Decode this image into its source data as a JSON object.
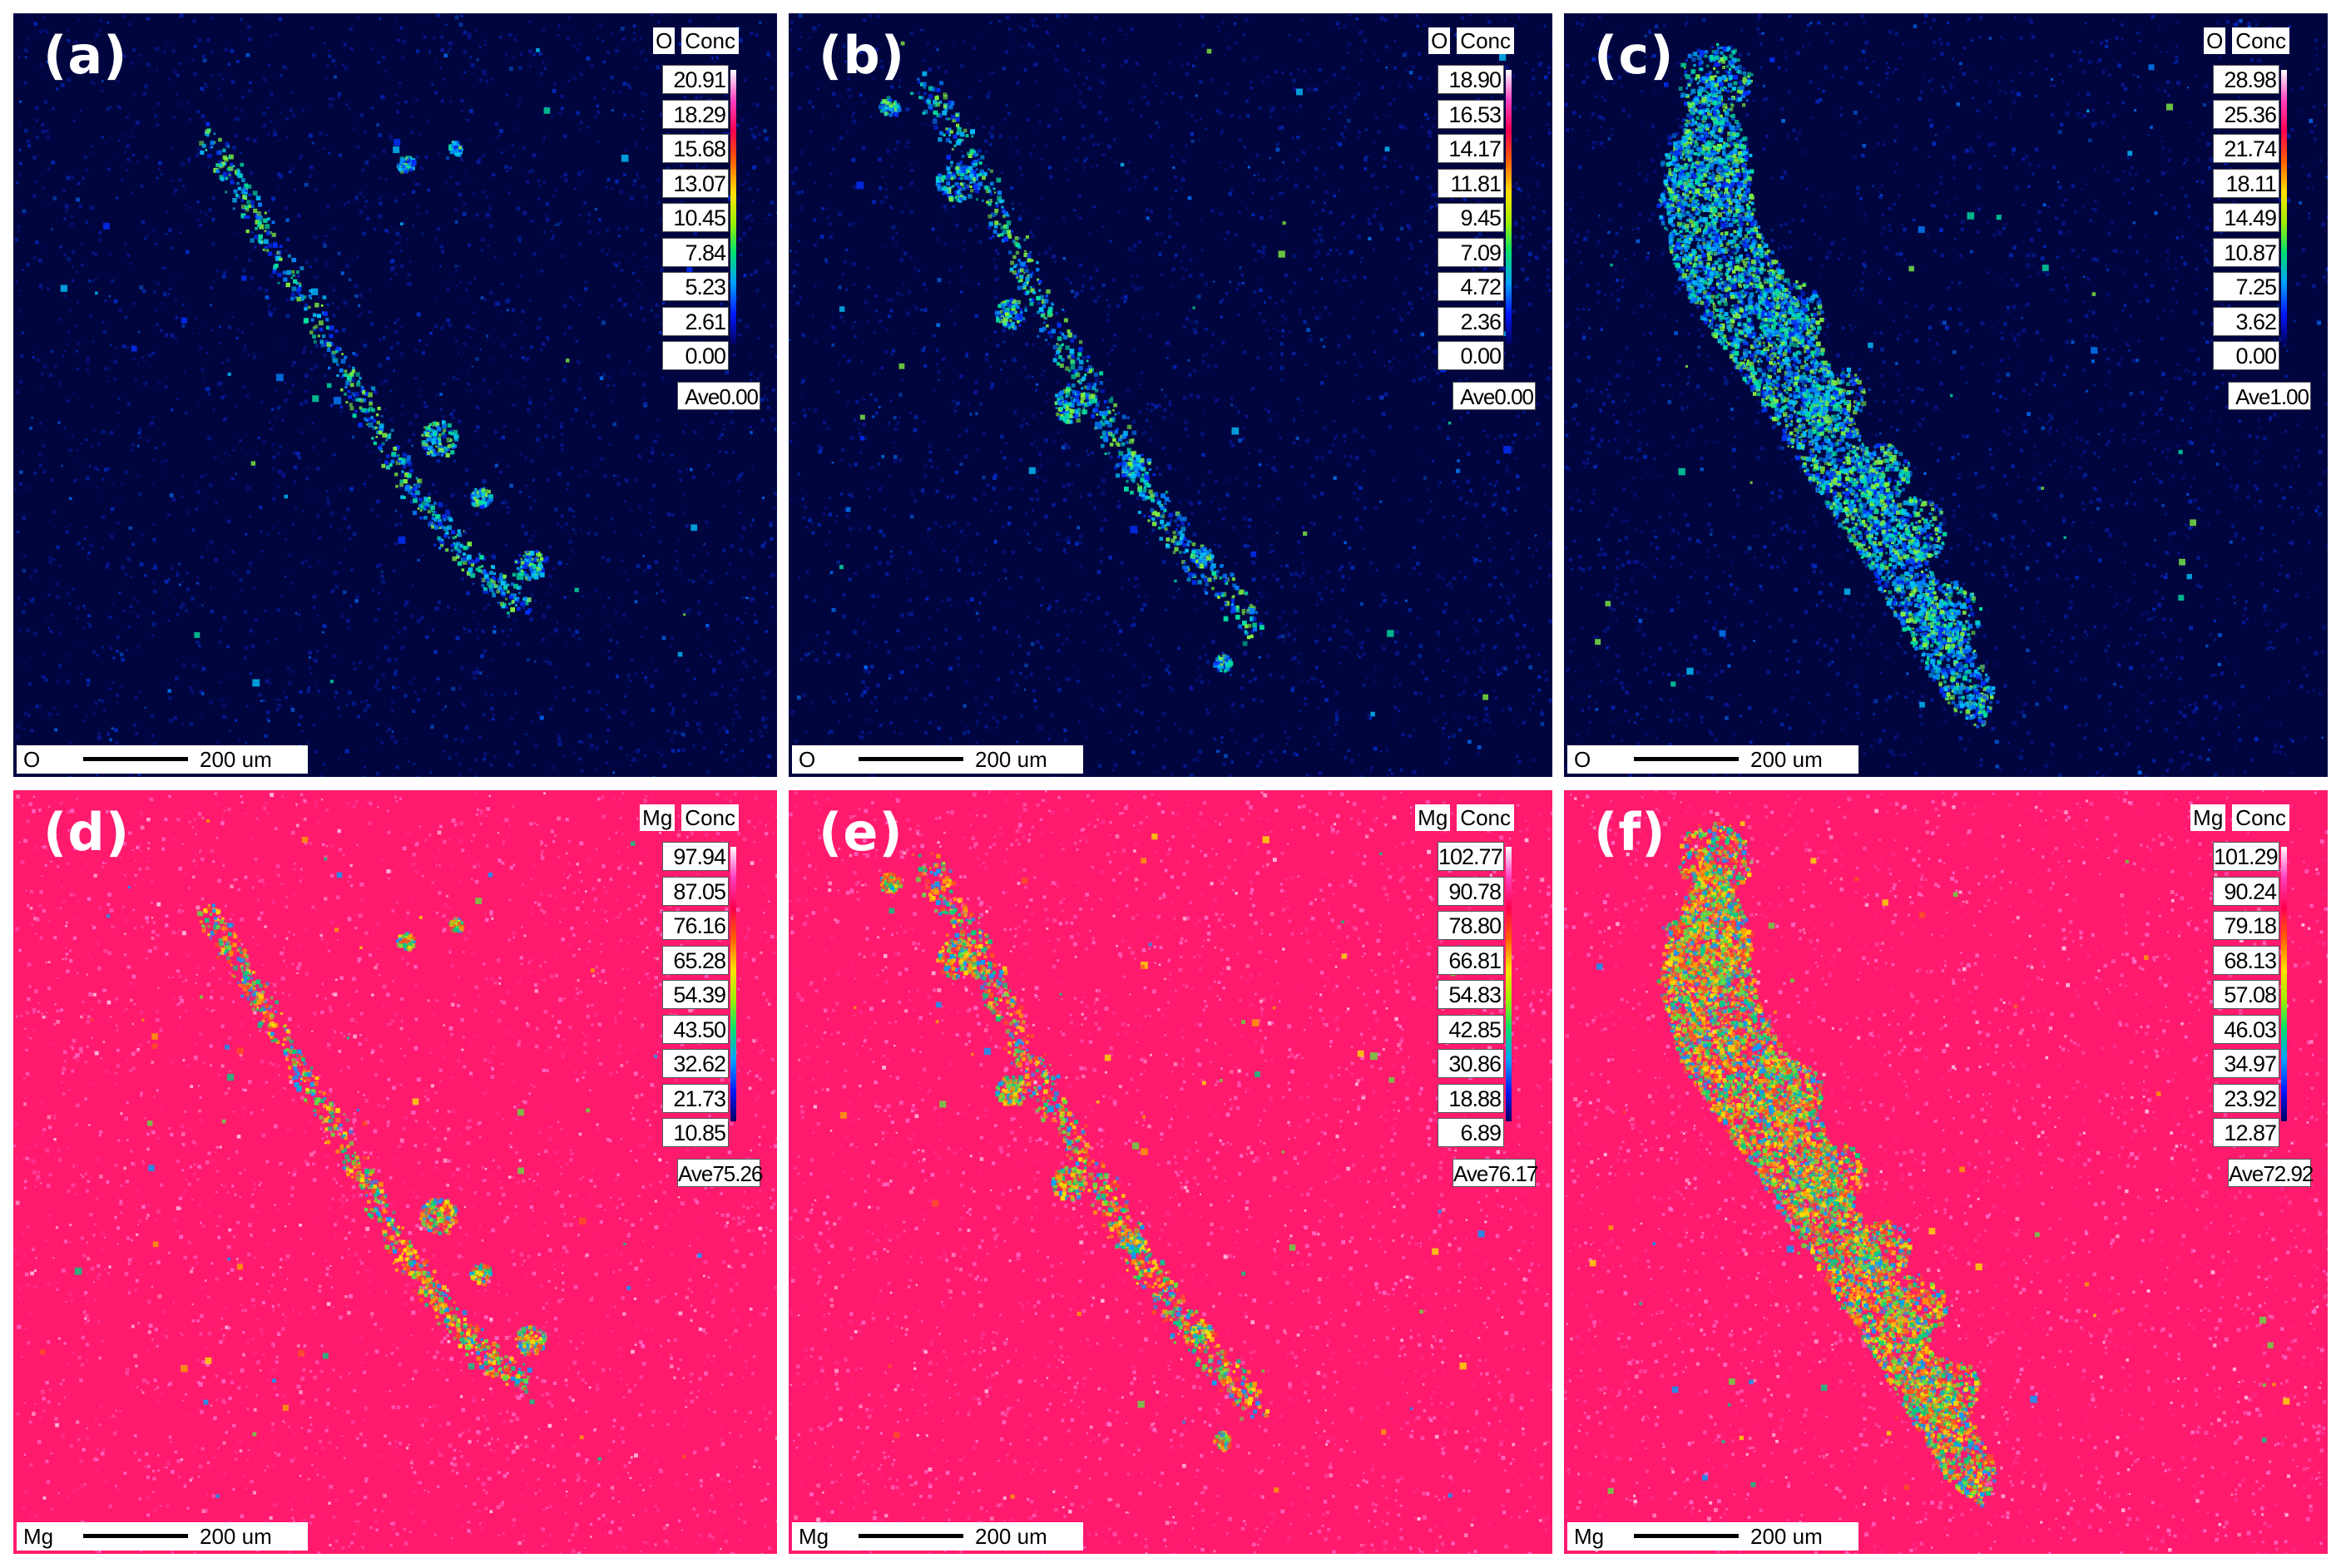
{
  "colorscale": {
    "stops": [
      "#000060",
      "#0018ff",
      "#00a0ff",
      "#00e070",
      "#a0f000",
      "#ffe000",
      "#ff6000",
      "#ff0050",
      "#ff40c0",
      "#ffffff"
    ],
    "background_o": "#000540",
    "background_mg": "#ff1a6e"
  },
  "panels": [
    {
      "label": "(a)",
      "element": "O",
      "conc_label": "Conc",
      "scale": [
        "20.91",
        "18.29",
        "15.68",
        "13.07",
        "10.45",
        "7.84",
        "5.23",
        "2.61",
        "0.00"
      ],
      "ave": "Ave0.00",
      "scalebar": {
        "element": "O",
        "text": "200 um"
      },
      "type": "O"
    },
    {
      "label": "(b)",
      "element": "O",
      "conc_label": "Conc",
      "scale": [
        "18.90",
        "16.53",
        "14.17",
        "11.81",
        "9.45",
        "7.09",
        "4.72",
        "2.36",
        "0.00"
      ],
      "ave": "Ave0.00",
      "scalebar": {
        "element": "O",
        "text": "200 um"
      },
      "type": "O"
    },
    {
      "label": "(c)",
      "element": "O",
      "conc_label": "Conc",
      "scale": [
        "28.98",
        "25.36",
        "21.74",
        "18.11",
        "14.49",
        "10.87",
        "7.25",
        "3.62",
        "0.00"
      ],
      "ave": "Ave1.00",
      "scalebar": {
        "element": "O",
        "text": "200 um"
      },
      "type": "O"
    },
    {
      "label": "(d)",
      "element": "Mg",
      "conc_label": "Conc",
      "scale": [
        "97.94",
        "87.05",
        "76.16",
        "65.28",
        "54.39",
        "43.50",
        "32.62",
        "21.73",
        "10.85"
      ],
      "ave": "Ave75.26",
      "scalebar": {
        "element": "Mg",
        "text": "200 um"
      },
      "type": "Mg"
    },
    {
      "label": "(e)",
      "element": "Mg",
      "conc_label": "Conc",
      "scale": [
        "102.77",
        "90.78",
        "78.80",
        "66.81",
        "54.83",
        "42.85",
        "30.86",
        "18.88",
        "6.89"
      ],
      "ave": "Ave76.17",
      "scalebar": {
        "element": "Mg",
        "text": "200 um"
      },
      "type": "Mg"
    },
    {
      "label": "(f)",
      "element": "Mg",
      "conc_label": "Conc",
      "scale": [
        "101.29",
        "90.24",
        "79.18",
        "68.13",
        "57.08",
        "46.03",
        "34.97",
        "23.92",
        "12.87"
      ],
      "ave": "Ave72.92",
      "scalebar": {
        "element": "Mg",
        "text": "200 um"
      },
      "type": "Mg"
    }
  ]
}
